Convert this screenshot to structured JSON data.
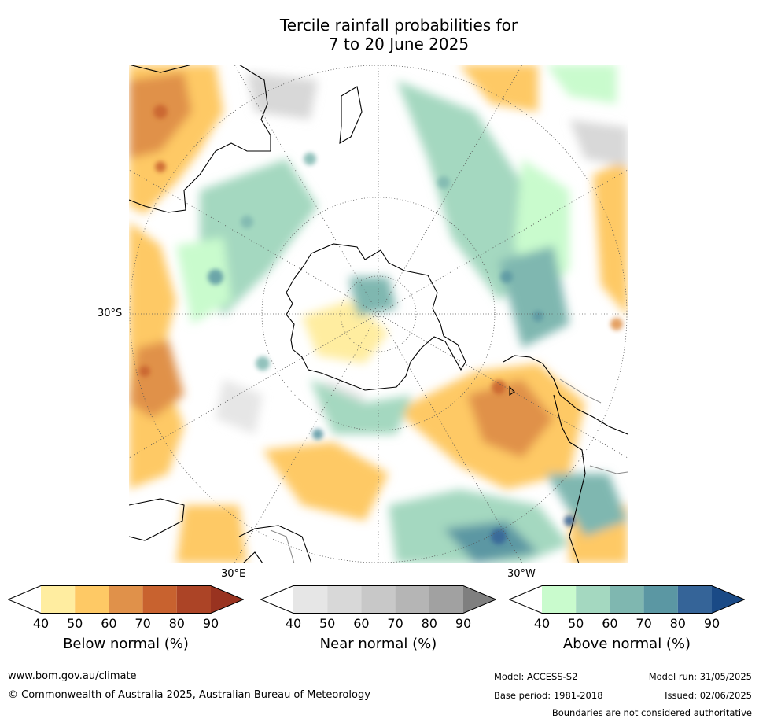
{
  "title": {
    "line1": "Tercile rainfall probabilities for",
    "line2": "7 to 20 June 2025"
  },
  "map": {
    "projection": "south-polar-stereographic",
    "labels": {
      "lat": "30°S",
      "lon_east": "30°E",
      "lon_west": "30°W"
    },
    "colors": {
      "ocean": "#ffffff",
      "graticule": "#555555",
      "coast": "#000000",
      "border": "#888888"
    }
  },
  "colorbars": [
    {
      "name": "below",
      "title": "Below normal (%)",
      "ticks": [
        "40",
        "50",
        "60",
        "70",
        "80",
        "90"
      ],
      "colors": [
        "#ffffff",
        "#ffeda0",
        "#fec965",
        "#e0914a",
        "#c8622f",
        "#ac4426",
        "#993320"
      ]
    },
    {
      "name": "near",
      "title": "Near normal (%)",
      "ticks": [
        "40",
        "50",
        "60",
        "70",
        "80",
        "90"
      ],
      "colors": [
        "#ffffff",
        "#e6e6e6",
        "#d8d8d8",
        "#c8c8c8",
        "#b5b5b5",
        "#a1a1a1",
        "#7f7f7f"
      ]
    },
    {
      "name": "above",
      "title": "Above normal (%)",
      "ticks": [
        "40",
        "50",
        "60",
        "70",
        "80",
        "90"
      ],
      "colors": [
        "#ffffff",
        "#c9fbcd",
        "#a4d8c0",
        "#7fb7b0",
        "#5b97a3",
        "#356498",
        "#1a4a86"
      ]
    }
  ],
  "footer": {
    "website": "www.bom.gov.au/climate",
    "copyright": "© Commonwealth of Australia 2025, Australian Bureau of Meteorology",
    "model": "Model: ACCESS-S2",
    "base_period": "Base period: 1981-2018",
    "model_run": "Model run: 31/05/2025",
    "issued": "Issued: 02/06/2025",
    "disclaimer": "Boundaries are not considered authoritative"
  }
}
